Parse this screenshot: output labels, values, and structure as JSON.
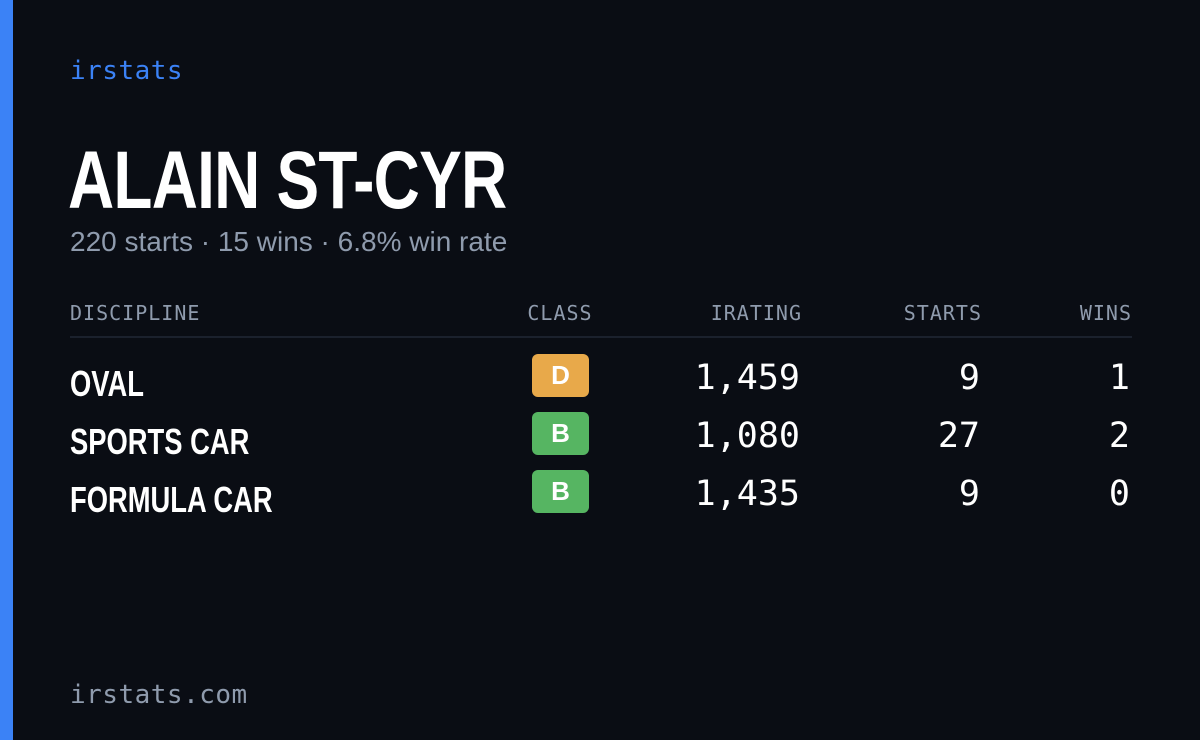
{
  "brand": "irstats",
  "driver": {
    "name": "ALAIN ST-CYR",
    "summary": "220 starts · 15 wins · 6.8% win rate"
  },
  "table": {
    "headers": {
      "discipline": "DISCIPLINE",
      "class": "CLASS",
      "irating": "IRATING",
      "starts": "STARTS",
      "wins": "WINS"
    },
    "rows": [
      {
        "discipline": "OVAL",
        "class": "D",
        "class_color": "#e8a94a",
        "irating": "1,459",
        "starts": "9",
        "wins": "1"
      },
      {
        "discipline": "SPORTS CAR",
        "class": "B",
        "class_color": "#56b562",
        "irating": "1,080",
        "starts": "27",
        "wins": "2"
      },
      {
        "discipline": "FORMULA CAR",
        "class": "B",
        "class_color": "#56b562",
        "irating": "1,435",
        "starts": "9",
        "wins": "0"
      }
    ]
  },
  "footer": {
    "url": "irstats.com"
  },
  "colors": {
    "background": "#0a0d14",
    "accent": "#3b82f6",
    "muted_text": "#8f9bad",
    "class_d": "#e8a94a",
    "class_b": "#56b562"
  }
}
